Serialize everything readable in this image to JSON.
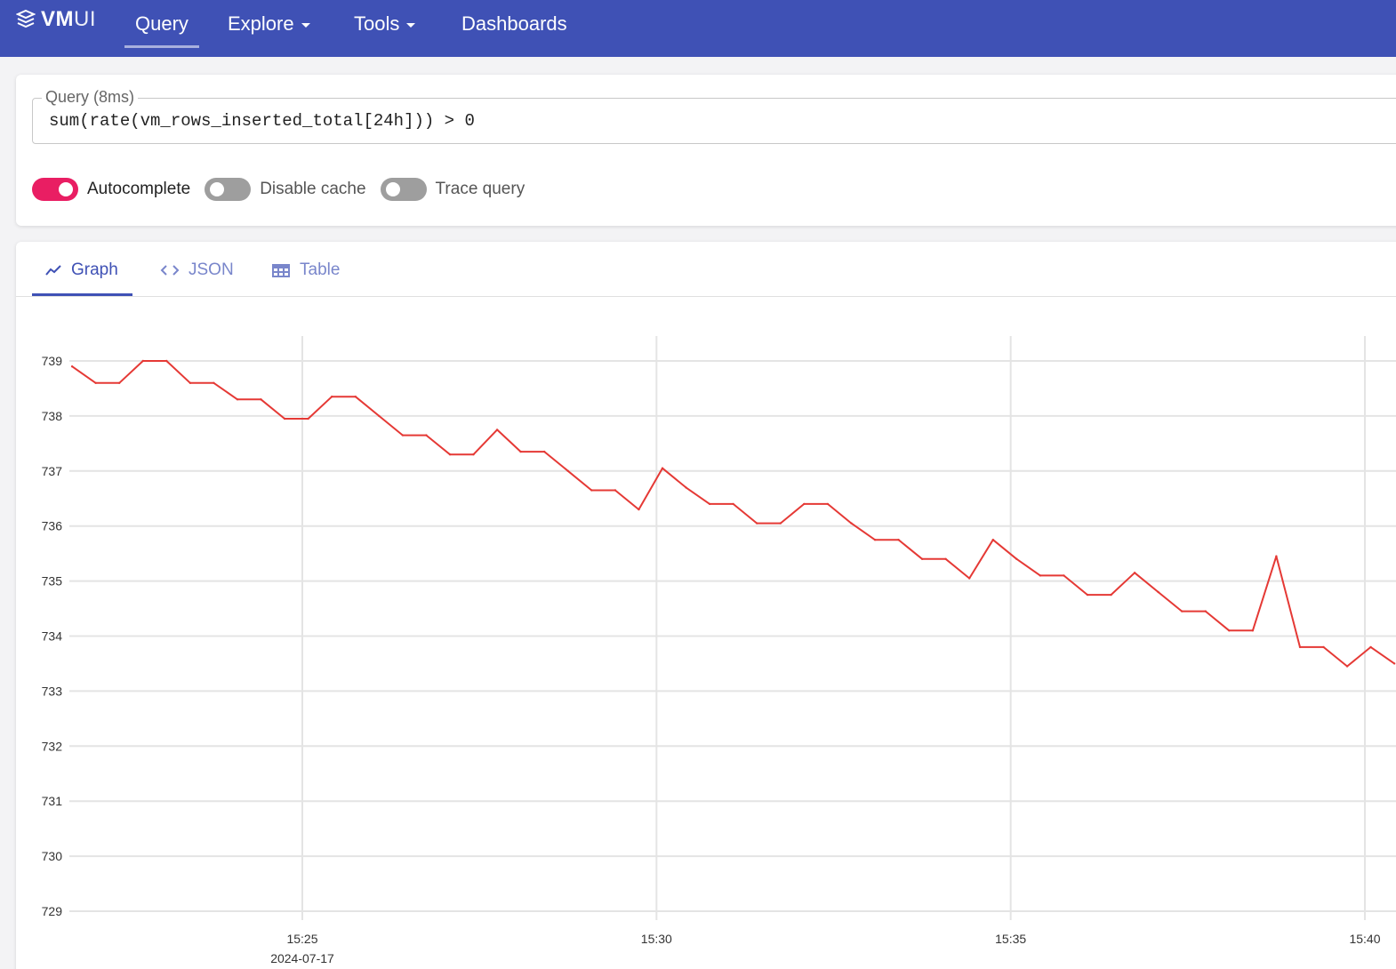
{
  "app": {
    "logo_bold": "VM",
    "logo_light": "UI",
    "brand_color": "#3f51b5",
    "accent_color": "#e91e63"
  },
  "nav": {
    "items": [
      {
        "label": "Query",
        "active": true,
        "dropdown": false
      },
      {
        "label": "Explore",
        "active": false,
        "dropdown": true
      },
      {
        "label": "Tools",
        "active": false,
        "dropdown": true
      },
      {
        "label": "Dashboards",
        "active": false,
        "dropdown": false
      }
    ]
  },
  "query": {
    "label": "Query (8ms)",
    "value": "sum(rate(vm_rows_inserted_total[24h])) > 0"
  },
  "toggles": [
    {
      "label": "Autocomplete",
      "on": true
    },
    {
      "label": "Disable cache",
      "on": false
    },
    {
      "label": "Trace query",
      "on": false
    }
  ],
  "tabs": [
    {
      "label": "Graph",
      "icon": "chart-line-icon",
      "active": true
    },
    {
      "label": "JSON",
      "icon": "code-icon",
      "active": false
    },
    {
      "label": "Table",
      "icon": "table-icon",
      "active": false
    }
  ],
  "chart_data": {
    "type": "line",
    "title": "",
    "xlabel": "",
    "ylabel": "",
    "x_ticks": [
      "15:25",
      "15:30",
      "15:35",
      "15:40"
    ],
    "x_date_label": "2024-07-17",
    "x_range": [
      "15:21:40",
      "15:40:25"
    ],
    "ylim": [
      729,
      739
    ],
    "y_ticks": [
      739,
      738,
      737,
      736,
      735,
      734,
      733,
      732,
      731,
      730,
      729
    ],
    "grid": true,
    "series": [
      {
        "color": "#e53935",
        "x": [
          "15:21:45",
          "15:22:05",
          "15:22:25",
          "15:22:45",
          "15:23:05",
          "15:23:25",
          "15:23:45",
          "15:24:05",
          "15:24:25",
          "15:24:45",
          "15:25:05",
          "15:25:25",
          "15:25:45",
          "15:26:05",
          "15:26:25",
          "15:26:45",
          "15:27:05",
          "15:27:25",
          "15:27:45",
          "15:28:05",
          "15:28:25",
          "15:28:45",
          "15:29:05",
          "15:29:25",
          "15:29:45",
          "15:30:05",
          "15:30:25",
          "15:30:45",
          "15:31:05",
          "15:31:25",
          "15:31:45",
          "15:32:05",
          "15:32:25",
          "15:32:45",
          "15:33:05",
          "15:33:25",
          "15:33:45",
          "15:34:05",
          "15:34:25",
          "15:34:45",
          "15:35:05",
          "15:35:25",
          "15:35:45",
          "15:36:05",
          "15:36:25",
          "15:36:45",
          "15:37:05",
          "15:37:25",
          "15:37:45",
          "15:38:05",
          "15:38:25",
          "15:38:45",
          "15:39:05",
          "15:39:25",
          "15:39:45",
          "15:40:05",
          "15:40:25"
        ],
        "values": [
          738.9,
          738.6,
          738.6,
          739.0,
          739.0,
          738.6,
          738.6,
          738.3,
          738.3,
          737.95,
          737.95,
          738.35,
          738.35,
          738.0,
          737.65,
          737.65,
          737.3,
          737.3,
          737.75,
          737.35,
          737.35,
          737.0,
          736.65,
          736.65,
          736.3,
          737.05,
          736.7,
          736.4,
          736.4,
          736.05,
          736.05,
          736.4,
          736.4,
          736.05,
          735.75,
          735.75,
          735.4,
          735.4,
          735.05,
          735.75,
          735.4,
          735.1,
          735.1,
          734.75,
          734.75,
          735.15,
          734.8,
          734.45,
          734.45,
          734.1,
          734.1,
          735.45,
          733.8,
          733.8,
          733.45,
          733.8,
          733.5
        ]
      }
    ]
  }
}
